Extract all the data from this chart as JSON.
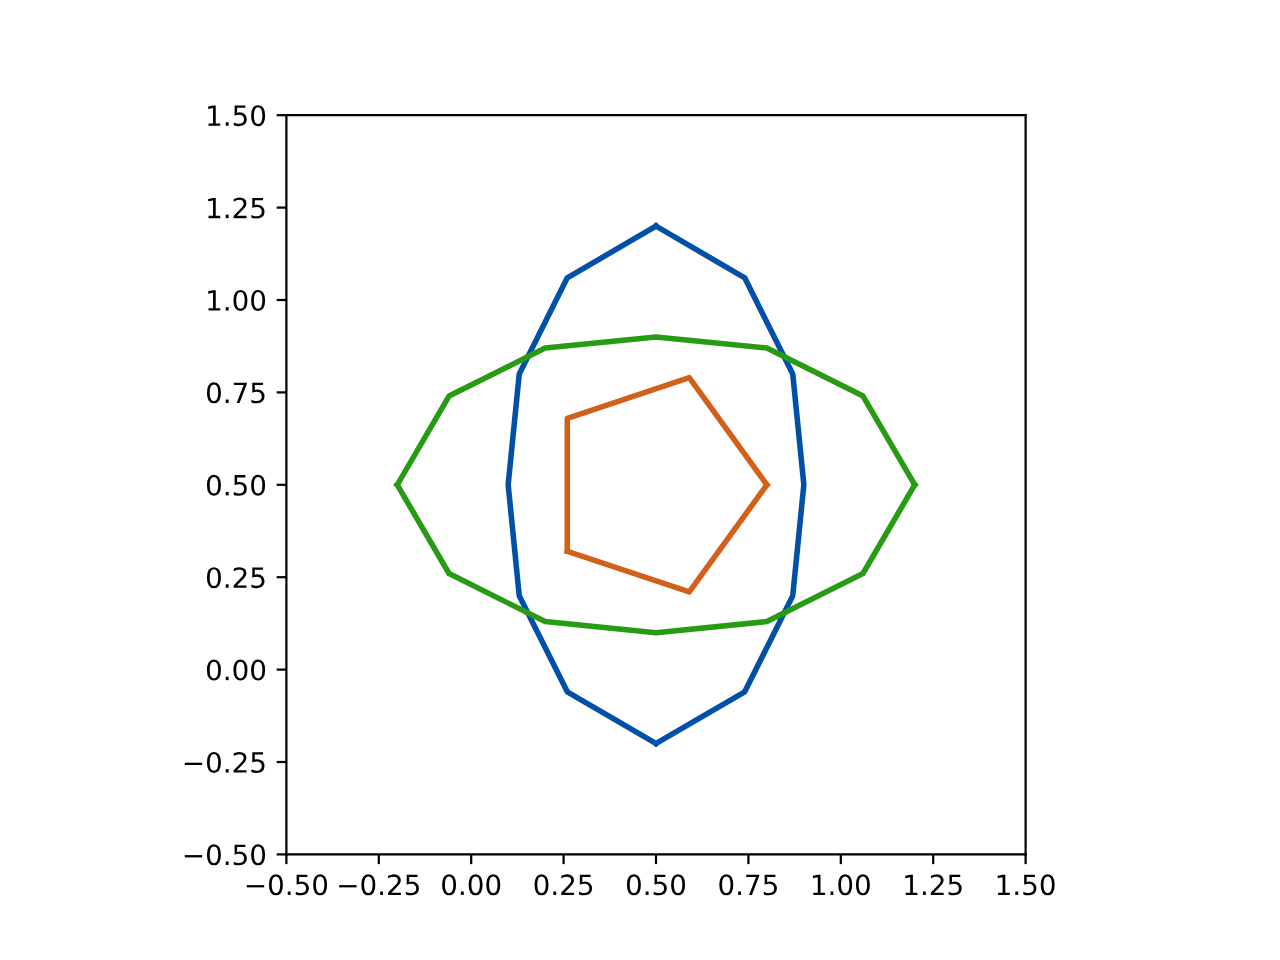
{
  "chart_data": {
    "type": "line",
    "xlim": [
      -0.5,
      1.5
    ],
    "ylim": [
      -0.5,
      1.5
    ],
    "xticks": [
      {
        "value": -0.5,
        "label": "−0.50"
      },
      {
        "value": -0.25,
        "label": "−0.25"
      },
      {
        "value": 0,
        "label": "0.00"
      },
      {
        "value": 0.25,
        "label": "0.25"
      },
      {
        "value": 0.5,
        "label": "0.50"
      },
      {
        "value": 0.75,
        "label": "0.75"
      },
      {
        "value": 1,
        "label": "1.00"
      },
      {
        "value": 1.25,
        "label": "1.25"
      },
      {
        "value": 1.5,
        "label": "1.50"
      }
    ],
    "yticks": [
      {
        "value": -0.5,
        "label": "−0.50"
      },
      {
        "value": -0.25,
        "label": "−0.25"
      },
      {
        "value": 0,
        "label": "0.00"
      },
      {
        "value": 0.25,
        "label": "0.25"
      },
      {
        "value": 0.5,
        "label": "0.50"
      },
      {
        "value": 0.75,
        "label": "0.75"
      },
      {
        "value": 1,
        "label": "1.00"
      },
      {
        "value": 1.25,
        "label": "1.25"
      },
      {
        "value": 1.5,
        "label": "1.50"
      }
    ],
    "grid": false,
    "legend": false,
    "marker": "none",
    "line_style": "solid",
    "series": [
      {
        "color": "#0050a8",
        "x": [
          0.5,
          0.26,
          0.13,
          0.1,
          0.13,
          0.26,
          0.5
        ],
        "values": [
          1.2,
          1.06,
          0.8,
          0.5,
          0.2,
          -0.06,
          -0.2
        ]
      },
      {
        "color": "#0050a8",
        "x": [
          0.5,
          0.74,
          0.87,
          0.9,
          0.87,
          0.74,
          0.5
        ],
        "values": [
          1.2,
          1.06,
          0.8,
          0.5,
          0.2,
          -0.06,
          -0.2
        ]
      },
      {
        "color": "#d2601a",
        "x": [
          0.26,
          0.26,
          0.59,
          0.8
        ],
        "values": [
          0.32,
          0.68,
          0.79,
          0.5
        ]
      },
      {
        "color": "#d2601a",
        "x": [
          0.26,
          0.59,
          0.8
        ],
        "values": [
          0.32,
          0.21,
          0.5
        ]
      },
      {
        "color": "#289b14",
        "x": [
          -0.2,
          -0.06,
          0.2,
          0.5,
          0.8,
          1.06,
          1.2
        ],
        "values": [
          0.5,
          0.74,
          0.87,
          0.9,
          0.87,
          0.74,
          0.5
        ]
      },
      {
        "color": "#289b14",
        "x": [
          -0.2,
          -0.06,
          0.2,
          0.5,
          0.8,
          1.06,
          1.2
        ],
        "values": [
          0.5,
          0.26,
          0.13,
          0.1,
          0.13,
          0.26,
          0.5
        ]
      }
    ]
  }
}
